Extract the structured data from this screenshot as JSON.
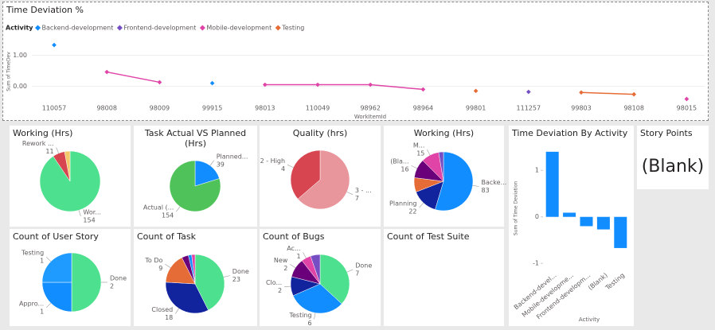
{
  "chart_data": [
    {
      "type": "line",
      "title": "Time Deviation %",
      "legend_title": "Activity",
      "x_label": "WorkItemId",
      "y_label": "Sum of TimeDev",
      "categories": [
        "110057",
        "98008",
        "98009",
        "99915",
        "98013",
        "110049",
        "98962",
        "98964",
        "99801",
        "111257",
        "99803",
        "98108",
        "98015"
      ],
      "series": [
        {
          "name": "Backend-development",
          "color": "#118DFF",
          "values": [
            1.33,
            null,
            null,
            0.1,
            null,
            null,
            null,
            null,
            null,
            null,
            null,
            null,
            null
          ]
        },
        {
          "name": "Frontend-development",
          "color": "#744EC2",
          "values": [
            null,
            null,
            null,
            null,
            null,
            null,
            null,
            null,
            null,
            -0.18,
            null,
            null,
            null
          ]
        },
        {
          "name": "Mobile-development",
          "color": "#E044A7",
          "values": [
            null,
            0.46,
            0.13,
            null,
            0.05,
            0.05,
            0.05,
            -0.1,
            null,
            null,
            null,
            null,
            -0.41
          ]
        },
        {
          "name": "Testing",
          "color": "#E66C37",
          "values": [
            null,
            null,
            null,
            null,
            null,
            null,
            null,
            null,
            -0.15,
            null,
            -0.2,
            -0.26,
            null
          ]
        }
      ],
      "ylim": [
        -0.5,
        1.5
      ],
      "yticks": [
        {
          "value": 1,
          "label": "1.00"
        },
        {
          "value": 0,
          "label": "0.00"
        }
      ]
    },
    {
      "type": "pie",
      "title": "Working (Hrs)",
      "categories": [
        "Wor...",
        "Rework ...",
        null
      ],
      "values": [
        154,
        11,
        5
      ],
      "colors": [
        "#4DE08E",
        "#D64550",
        "#F2C86B"
      ]
    },
    {
      "type": "pie",
      "title": "Task Actual VS Planned (Hrs)",
      "categories": [
        "Planned...",
        "Actual (..."
      ],
      "values": [
        39,
        154
      ],
      "colors": [
        "#118DFF",
        "#4FC35A"
      ]
    },
    {
      "type": "pie",
      "title": "Quality (hrs)",
      "categories": [
        "3 - ...",
        "2 - High"
      ],
      "values": [
        7,
        4
      ],
      "colors": [
        "#E8959B",
        "#D64550"
      ]
    },
    {
      "type": "pie",
      "title": "Working (Hrs)",
      "categories": [
        "Backe...",
        "Planning",
        null,
        "(Bla...",
        "M...",
        null
      ],
      "values": [
        83,
        22,
        12,
        16,
        15,
        4
      ],
      "colors": [
        "#118DFF",
        "#12239E",
        "#E66C37",
        "#6B007B",
        "#E044A7",
        "#744EC2"
      ]
    },
    {
      "type": "pie",
      "title": "Count of User Story",
      "categories": [
        "Done",
        "Appro...",
        "Testing"
      ],
      "values": [
        2,
        1,
        1
      ],
      "colors": [
        "#4DE08E",
        "#118DFF",
        "#1F9AFF"
      ]
    },
    {
      "type": "pie",
      "title": "Count of Task",
      "categories": [
        "Done",
        "Closed",
        "To Do",
        null,
        null,
        null
      ],
      "values": [
        23,
        18,
        9,
        2,
        1,
        1
      ],
      "colors": [
        "#4DE08E",
        "#12239E",
        "#E66C37",
        "#6B007B",
        "#118DFF",
        "#E044A7"
      ]
    },
    {
      "type": "pie",
      "title": "Count of Bugs",
      "categories": [
        "Done",
        "Testing",
        "Clo...",
        "New",
        "Ac...",
        null
      ],
      "values": [
        7,
        6,
        2,
        2,
        1,
        1
      ],
      "colors": [
        "#4DE08E",
        "#118DFF",
        "#12239E",
        "#6B007B",
        "#E044A7",
        "#744EC2"
      ]
    },
    {
      "type": "empty",
      "title": "Count of Test Suite"
    },
    {
      "type": "bar",
      "title": "Time Deviation By Activity",
      "x_label": "Activity",
      "y_label": "Sum of Time Deviation",
      "categories": [
        "Backend-devel...",
        "Mobile-developme...",
        "Frontend-developm...",
        "(Blank)",
        "Testing"
      ],
      "values": [
        1.4,
        0.09,
        -0.2,
        -0.27,
        -0.67
      ],
      "color": "#118DFF",
      "ylim": [
        -1.15,
        1.5
      ],
      "yticks": [
        1,
        0,
        -1
      ]
    },
    {
      "type": "card",
      "title": "Story Points",
      "value": "(Blank)"
    }
  ]
}
